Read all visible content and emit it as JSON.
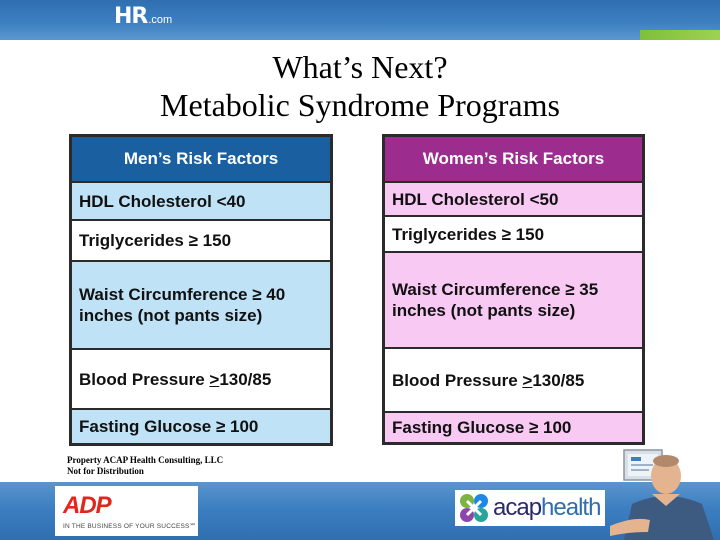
{
  "header": {
    "logo_main": "HR",
    "logo_suffix": ".com"
  },
  "slide": {
    "title_line1": "What’s Next?",
    "title_line2": "Metabolic Syndrome Programs"
  },
  "men_table": {
    "header": "Men’s Risk Factors",
    "rows": [
      {
        "label": "HDL Cholesterol <40"
      },
      {
        "label": "Triglycerides ≥ 150"
      },
      {
        "label_line1": "Waist Circumference ≥ 40",
        "label_line2": "inches (not pants size)"
      },
      {
        "prefix": "Blood Pressure ",
        "mark": ">",
        "suffix": "130/85"
      },
      {
        "label": "Fasting Glucose ≥ 100"
      }
    ]
  },
  "women_table": {
    "header": "Women’s Risk Factors",
    "rows": [
      {
        "label": "HDL Cholesterol <50"
      },
      {
        "label": "Triglycerides ≥ 150"
      },
      {
        "label_line1": "Waist Circumference ≥ 35",
        "label_line2": "inches (not pants size)"
      },
      {
        "prefix": "Blood Pressure ",
        "mark": ">",
        "suffix": "130/85"
      },
      {
        "label": "Fasting Glucose ≥ 100"
      }
    ]
  },
  "footer": {
    "notice_line1": "Property ACAP Health Consulting, LLC",
    "notice_line2": "Not for Distribution"
  },
  "logos": {
    "adp": "ADP",
    "adp_tagline": "IN THE BUSINESS OF YOUR SUCCESS℠",
    "acap_part1": "acap",
    "acap_part2": "health"
  },
  "colors": {
    "men_header": "#1a5fa0",
    "men_tint": "#bfe2f7",
    "women_header": "#9c2c8e",
    "women_tint": "#f8c9f3",
    "band_blue": "#3c7fc1",
    "adp_red": "#e1261c"
  },
  "icons": [
    "person-at-computer-illustration",
    "acap-health-logo-icon"
  ]
}
